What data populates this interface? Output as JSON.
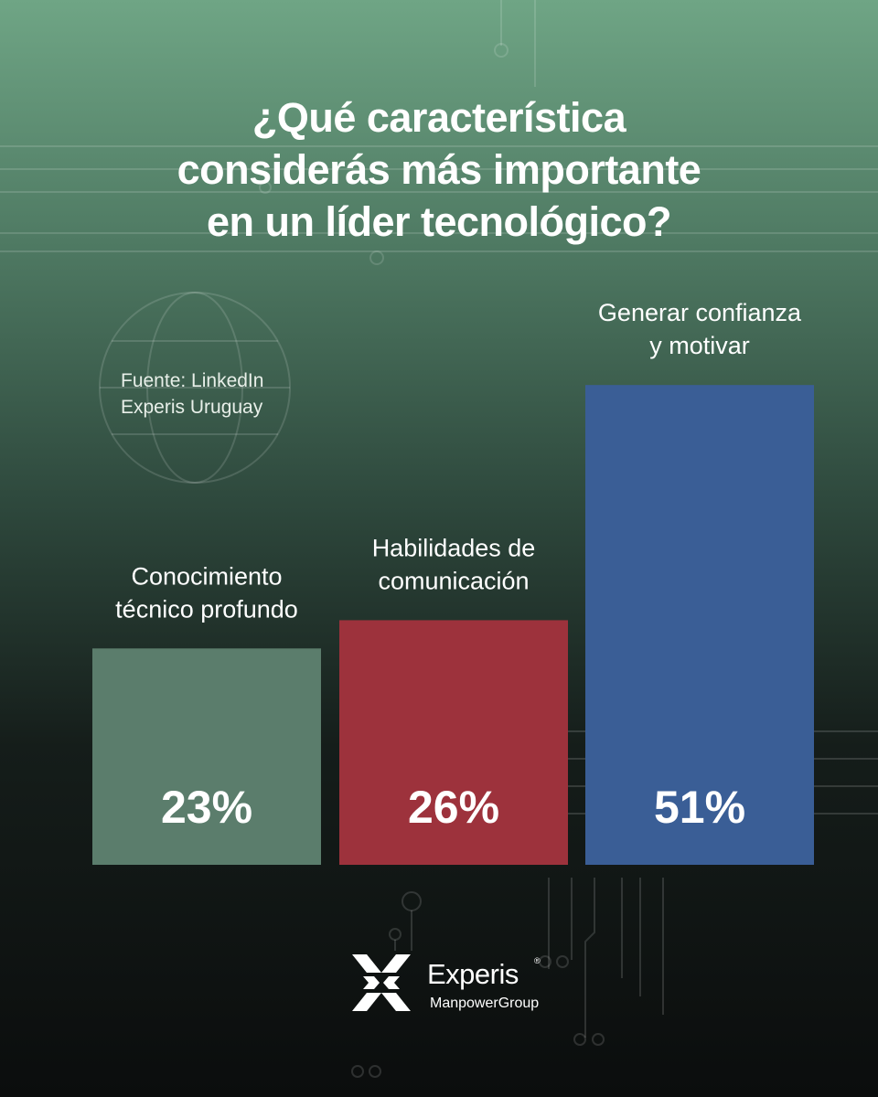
{
  "title": {
    "line1": "¿Qué característica",
    "line2": "considerás más importante",
    "line3": "en un líder tecnológico?"
  },
  "source": {
    "line1": "Fuente: LinkedIn",
    "line2": "Experis Uruguay"
  },
  "chart_data": {
    "type": "bar",
    "categories": [
      [
        "Conocimiento",
        "técnico profundo"
      ],
      [
        "Habilidades de",
        "comunicación"
      ],
      [
        "Generar confianza",
        "y motivar"
      ]
    ],
    "values": [
      23,
      26,
      51
    ],
    "value_labels": [
      "23%",
      "26%",
      "51%"
    ],
    "colors": [
      "#5b7d6c",
      "#9d323c",
      "#3a5e96"
    ],
    "ylim": [
      0,
      55
    ],
    "title": "¿Qué característica considerás más importante en un líder tecnológico?"
  },
  "logo": {
    "name": "Experis",
    "sub": "ManpowerGroup",
    "reg": "®"
  },
  "colors": {
    "background_top": "#6fa585",
    "background_bottom": "#0b0d0d",
    "text": "#ffffff"
  }
}
